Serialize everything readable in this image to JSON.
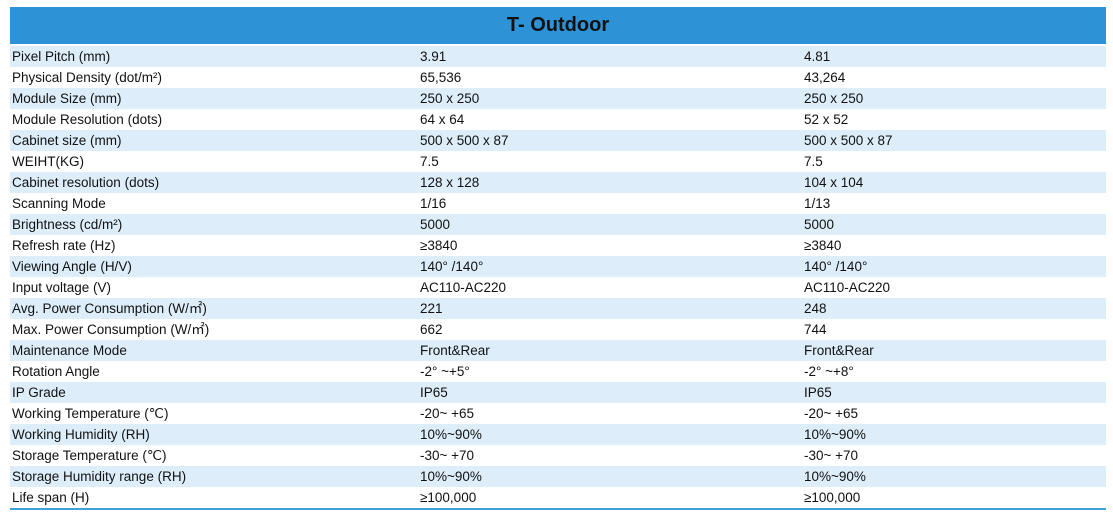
{
  "title": "T- Outdoor",
  "colors": {
    "header_bg": "#2d93d6",
    "row_alt_bg": "#ddeefa",
    "row_bg": "#ffffff"
  },
  "rows": [
    {
      "label": "Pixel Pitch (mm)",
      "a": "3.91",
      "b": "4.81"
    },
    {
      "label": "Physical Density (dot/m²)",
      "a": "65,536",
      "b": "43,264"
    },
    {
      "label": "Module Size (mm)",
      "a": "250 x 250",
      "b": "250 x 250"
    },
    {
      "label": "Module Resolution (dots)",
      "a": "64 x 64",
      "b": "52 x 52"
    },
    {
      "label": "Cabinet size (mm)",
      "a": "500 x 500 x 87",
      "b": "500 x 500 x 87"
    },
    {
      "label": "WEIHT(KG)",
      "a": "7.5",
      "b": "7.5"
    },
    {
      "label": "Cabinet resolution (dots)",
      "a": "128 x 128",
      "b": "104 x 104"
    },
    {
      "label": "Scanning Mode",
      "a": "1/16",
      "b": "1/13"
    },
    {
      "label": "Brightness (cd/m²)",
      "a": "5000",
      "b": "5000"
    },
    {
      "label": "Refresh  rate (Hz)",
      "a": "≥3840",
      "b": "≥3840"
    },
    {
      "label": "Viewing Angle (H/V)",
      "a": "140° /140°",
      "b": "140° /140°"
    },
    {
      "label": "Input voltage (V)",
      "a": "AC110-AC220",
      "b": "AC110-AC220"
    },
    {
      "label": "Avg. Power Consumption (W/㎡)",
      "a": "221",
      "b": "248"
    },
    {
      "label": "Max. Power Consumption (W/㎡)",
      "a": "662",
      "b": "744"
    },
    {
      "label": "Maintenance  Mode",
      "a": "Front&Rear",
      "b": "Front&Rear"
    },
    {
      "label": "Rotation Angle",
      "a": "-2° ~+5°",
      "b": "-2° ~+8°"
    },
    {
      "label": "IP Grade",
      "a": "IP65",
      "b": "IP65"
    },
    {
      "label": "Working Temperature (℃)",
      "a": "-20~ +65",
      "b": "-20~ +65"
    },
    {
      "label": "Working  Humidity (RH)",
      "a": "10%~90%",
      "b": "10%~90%"
    },
    {
      "label": "Storage  Temperature (℃)",
      "a": "-30~ +70",
      "b": "-30~ +70"
    },
    {
      "label": "Storage Humidity range (RH)",
      "a": "10%~90%",
      "b": "10%~90%"
    },
    {
      "label": "Life span (H)",
      "a": "≥100,000",
      "b": "≥100,000"
    }
  ]
}
